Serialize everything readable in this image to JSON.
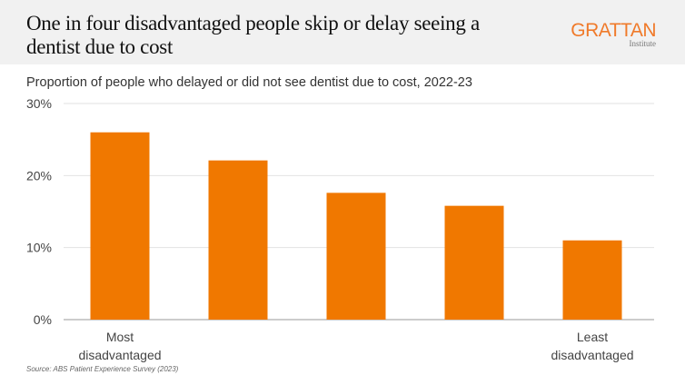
{
  "header": {
    "title": "One in four disadvantaged people skip or delay seeing a dentist due to cost",
    "logo_main": "GRATTAN",
    "logo_sub": "Institute"
  },
  "subtitle": "Proportion of people who delayed or did not see dentist due to cost, 2022-23",
  "source": "Source: ABS Patient Experience Survey (2023)",
  "colors": {
    "bar": "#f07800",
    "grid": "#e2e2e2",
    "axis": "#cccccc"
  },
  "chart_data": {
    "type": "bar",
    "title": "Proportion of people who delayed or did not see dentist due to cost, 2022-23",
    "categories": [
      [
        "Most",
        "disadvantaged"
      ],
      [],
      [],
      [],
      [
        "Least",
        "disadvantaged"
      ]
    ],
    "values": [
      26.0,
      22.1,
      17.6,
      15.8,
      11.0
    ],
    "ylim": [
      0,
      30
    ],
    "yticks": [
      0,
      10,
      20,
      30
    ],
    "ytick_labels": [
      "0%",
      "10%",
      "20%",
      "30%"
    ],
    "grid": true,
    "xlabel": "",
    "ylabel": ""
  }
}
